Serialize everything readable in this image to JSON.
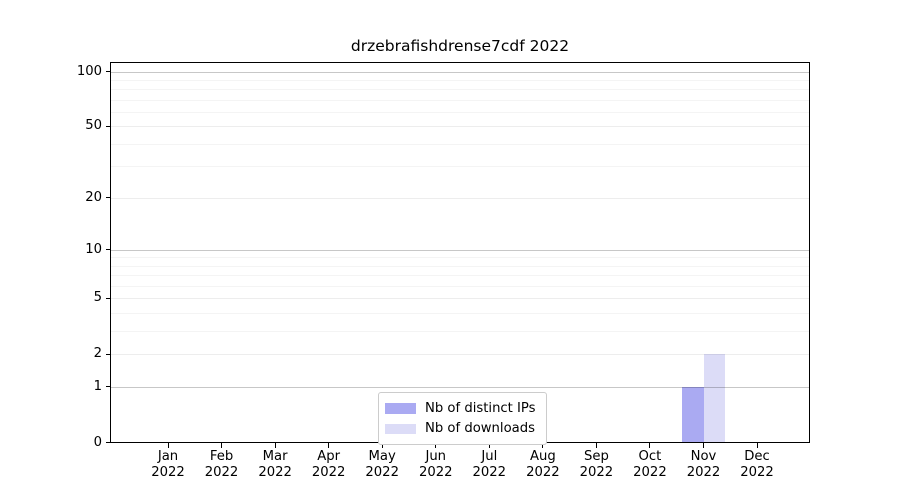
{
  "chart_data": {
    "type": "bar",
    "title": "drzebrafishdrense7cdf 2022",
    "categories": [
      "Jan 2022",
      "Feb 2022",
      "Mar 2022",
      "Apr 2022",
      "May 2022",
      "Jun 2022",
      "Jul 2022",
      "Aug 2022",
      "Sep 2022",
      "Oct 2022",
      "Nov 2022",
      "Dec 2022"
    ],
    "series": [
      {
        "name": "Nb of distinct IPs",
        "color": "#aaaaf2",
        "values": [
          0,
          0,
          0,
          0,
          0,
          0,
          0,
          0,
          0,
          0,
          1,
          0
        ]
      },
      {
        "name": "Nb of downloads",
        "color": "#dcdcf7",
        "values": [
          0,
          0,
          0,
          0,
          0,
          0,
          0,
          0,
          0,
          0,
          2,
          0
        ]
      }
    ],
    "xlabel": "",
    "ylabel": "",
    "y_scale": "log1p",
    "y_major_ticks": [
      0,
      1,
      2,
      5,
      10,
      20,
      50,
      100
    ],
    "y_minor_ticks": [
      3,
      4,
      6,
      7,
      8,
      9,
      30,
      40,
      60,
      70,
      80,
      90
    ],
    "y_emphasized_gridlines": [
      1,
      10,
      100
    ],
    "ylim": [
      0,
      112
    ],
    "grid": "horizontal",
    "legend_position": "bottom-center-inside"
  },
  "colors": {
    "background": "#ffffff",
    "spine": "#000000",
    "tick_text": "#000000",
    "legend_border": "#cccccc",
    "bar_distinct_ips": "#aaaaf2",
    "bar_downloads": "#dcdcf7"
  }
}
